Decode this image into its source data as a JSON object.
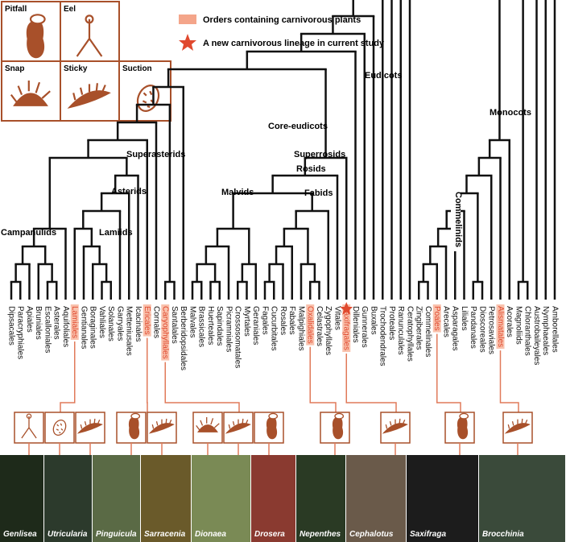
{
  "trap_types": [
    "Pitfall",
    "Eel",
    "Snap",
    "Sticky",
    "Suction"
  ],
  "legend": {
    "orders": "Orders containing carnivorous  plants",
    "new_lineage": "A new carnivorous lineage in current study"
  },
  "clades": [
    "Eudicots",
    "Monocots",
    "Core-eudicots",
    "Superasterids",
    "Superrosids",
    "Rosids",
    "Asterids",
    "Malvids",
    "Fabids",
    "Campanulids",
    "Lamiids",
    "Commelinids"
  ],
  "orders": [
    {
      "name": "Dipsacales",
      "highlighted": false
    },
    {
      "name": "Paracryphiales",
      "highlighted": false
    },
    {
      "name": "Apiales",
      "highlighted": false
    },
    {
      "name": "Bruniales",
      "highlighted": false
    },
    {
      "name": "Escalloniales",
      "highlighted": false
    },
    {
      "name": "Asterales",
      "highlighted": false
    },
    {
      "name": "Aquifoliales",
      "highlighted": false
    },
    {
      "name": "Lamiales",
      "highlighted": true
    },
    {
      "name": "Gentianales",
      "highlighted": false
    },
    {
      "name": "Boraginales",
      "highlighted": false
    },
    {
      "name": "Vahliales",
      "highlighted": false
    },
    {
      "name": "Solanales",
      "highlighted": false
    },
    {
      "name": "Garryales",
      "highlighted": false
    },
    {
      "name": "Metteniusales",
      "highlighted": false
    },
    {
      "name": "Icacinales",
      "highlighted": false
    },
    {
      "name": "Ericales",
      "highlighted": true
    },
    {
      "name": "Cornales",
      "highlighted": false
    },
    {
      "name": "Caryophyllales",
      "highlighted": true
    },
    {
      "name": "Santalales",
      "highlighted": false
    },
    {
      "name": "Berberidopsidales",
      "highlighted": false
    },
    {
      "name": "Malvales",
      "highlighted": false
    },
    {
      "name": "Brassicales",
      "highlighted": false
    },
    {
      "name": "Huerteales",
      "highlighted": false
    },
    {
      "name": "Sapindales",
      "highlighted": false
    },
    {
      "name": "Picramniales",
      "highlighted": false
    },
    {
      "name": "Crossosomatales",
      "highlighted": false
    },
    {
      "name": "Myrtales",
      "highlighted": false
    },
    {
      "name": "Geraniales",
      "highlighted": false
    },
    {
      "name": "Fagales",
      "highlighted": false
    },
    {
      "name": "Cucurbitales",
      "highlighted": false
    },
    {
      "name": "Rosales",
      "highlighted": false
    },
    {
      "name": "Fabales",
      "highlighted": false
    },
    {
      "name": "Malpighiales",
      "highlighted": false
    },
    {
      "name": "Oxalidales",
      "highlighted": true
    },
    {
      "name": "Celastrales",
      "highlighted": false
    },
    {
      "name": "Zygophyllales",
      "highlighted": false
    },
    {
      "name": "Vitales",
      "highlighted": false
    },
    {
      "name": "Saxifragales",
      "highlighted": true
    },
    {
      "name": "Dilleniales",
      "highlighted": false
    },
    {
      "name": "Gunnerales",
      "highlighted": false
    },
    {
      "name": "Buxales",
      "highlighted": false
    },
    {
      "name": "Trochodendrales",
      "highlighted": false
    },
    {
      "name": "Proteales",
      "highlighted": false
    },
    {
      "name": "Ranunculales",
      "highlighted": false
    },
    {
      "name": "Ceratophyllales",
      "highlighted": false
    },
    {
      "name": "Zingiberales",
      "highlighted": false
    },
    {
      "name": "Commelinales",
      "highlighted": false
    },
    {
      "name": "Poales",
      "highlighted": true
    },
    {
      "name": "Arecales",
      "highlighted": false
    },
    {
      "name": "Asparagales",
      "highlighted": false
    },
    {
      "name": "Liliales",
      "highlighted": false
    },
    {
      "name": "Pandanales",
      "highlighted": false
    },
    {
      "name": "Dioscoreales",
      "highlighted": false
    },
    {
      "name": "Petrosaviales",
      "highlighted": false
    },
    {
      "name": "Alismatales",
      "highlighted": true
    },
    {
      "name": "Acorales",
      "highlighted": false
    },
    {
      "name": "Magnoliids",
      "highlighted": false
    },
    {
      "name": "Chloranthales",
      "highlighted": false
    },
    {
      "name": "Austrobaileyales",
      "highlighted": false
    },
    {
      "name": "Nymphaeales",
      "highlighted": false
    },
    {
      "name": "Amborellales",
      "highlighted": false
    }
  ],
  "genera": [
    "Genlisea",
    "Utricularia",
    "Pinguicula",
    "Sarracenia",
    "Dionaea",
    "Drosera",
    "Nepenthes",
    "Cephalotus",
    "Saxifraga",
    "Brocchinia"
  ]
}
